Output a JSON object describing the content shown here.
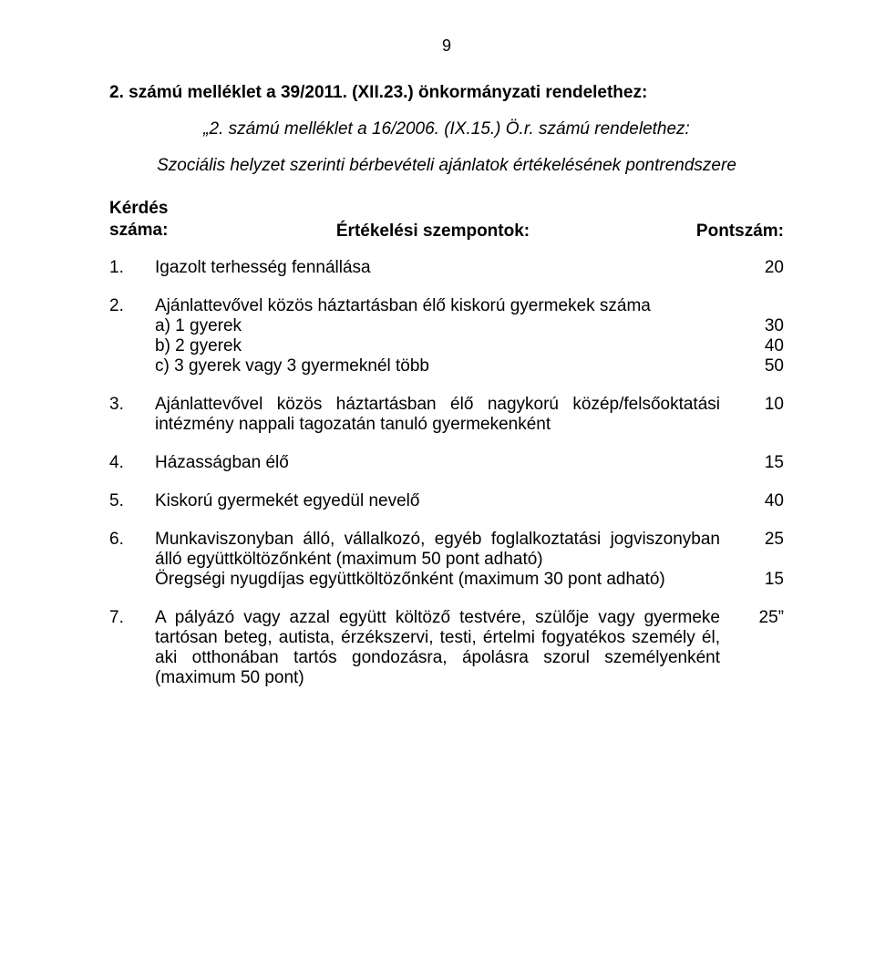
{
  "page_number": "9",
  "title1": "2. számú melléklet a 39/2011. (XII.23.) önkormányzati rendelethez:",
  "title2": "„2. számú melléklet a 16/2006. (IX.15.) Ö.r. számú rendelethez:",
  "subtitle": "Szociális helyzet szerinti bérbevételi ajánlatok értékelésének pontrendszere",
  "header": {
    "left_line1": "Kérdés",
    "left_line2": "száma:",
    "mid": "Értékelési szempontok:",
    "right": "Pontszám:"
  },
  "items": [
    {
      "num": "1.",
      "main": "Igazolt terhesség fennállása",
      "main_pts": "20"
    },
    {
      "num": "2.",
      "main": "Ajánlattevővel közös háztartásban élő kiskorú gyermekek száma",
      "subs": [
        {
          "text": "a) 1 gyerek",
          "pts": "30"
        },
        {
          "text": "b) 2 gyerek",
          "pts": "40"
        },
        {
          "text": "c) 3 gyerek vagy 3 gyermeknél több",
          "pts": "50"
        }
      ]
    },
    {
      "num": "3.",
      "block_text": "Ajánlattevővel közös háztartásban élő nagykorú közép/felsőoktatási intézmény nappali tagozatán tanuló gyermekenként",
      "block_pts": "10"
    },
    {
      "num": "4.",
      "main": "Házasságban élő",
      "main_pts": "15"
    },
    {
      "num": "5.",
      "main": "Kiskorú gyermekét egyedül nevelő",
      "main_pts": "40"
    },
    {
      "num": "6.",
      "blocks": [
        {
          "text": "Munkaviszonyban álló, vállalkozó, egyéb foglalkoztatási jogviszonyban álló együttköltözőnként (maximum 50 pont adható)",
          "pts": "25"
        },
        {
          "text": "Öregségi nyugdíjas együttköltözőnként (maximum 30 pont adható)",
          "pts": "15"
        }
      ]
    },
    {
      "num": "7.",
      "block_text": "A pályázó vagy azzal együtt költöző testvére, szülője vagy gyermeke tartósan beteg, autista, érzékszervi, testi, értelmi fogyatékos személy él, aki otthonában tartós gondozásra, ápolásra szorul személyenként (maximum 50 pont)",
      "block_pts": "25”"
    }
  ]
}
